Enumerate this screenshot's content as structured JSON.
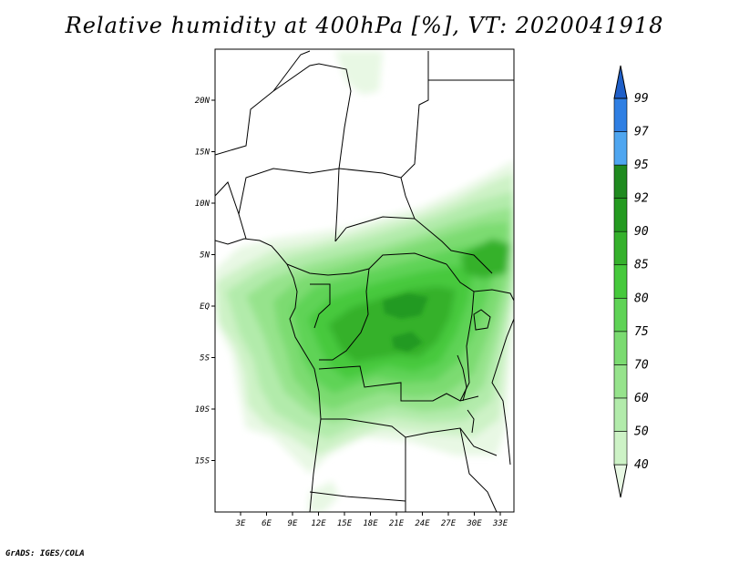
{
  "title": "Relative humidity at 400hPa [%], VT: 2020041918",
  "credit": "GrADS: IGES/COLA",
  "map": {
    "lat_labels": [
      "20N",
      "15N",
      "10N",
      "5N",
      "EQ",
      "5S",
      "10S",
      "15S"
    ],
    "lon_labels": [
      "3E",
      "6E",
      "9E",
      "12E",
      "15E",
      "18E",
      "21E",
      "24E",
      "27E",
      "30E",
      "33E"
    ]
  },
  "colorbar": {
    "levels": [
      "40",
      "50",
      "60",
      "70",
      "75",
      "80",
      "85",
      "90",
      "92",
      "95",
      "97",
      "99"
    ],
    "colors": [
      "#e8f8e4",
      "#cdf2c6",
      "#b2ebab",
      "#96e38c",
      "#7bdb71",
      "#5fd356",
      "#46c93c",
      "#35b12c",
      "#249a20",
      "#1f8a1f",
      "#4fa6f0",
      "#2f7fe3",
      "#1f5fc8"
    ]
  },
  "colors": {
    "border": "#000000",
    "background": "#ffffff"
  }
}
